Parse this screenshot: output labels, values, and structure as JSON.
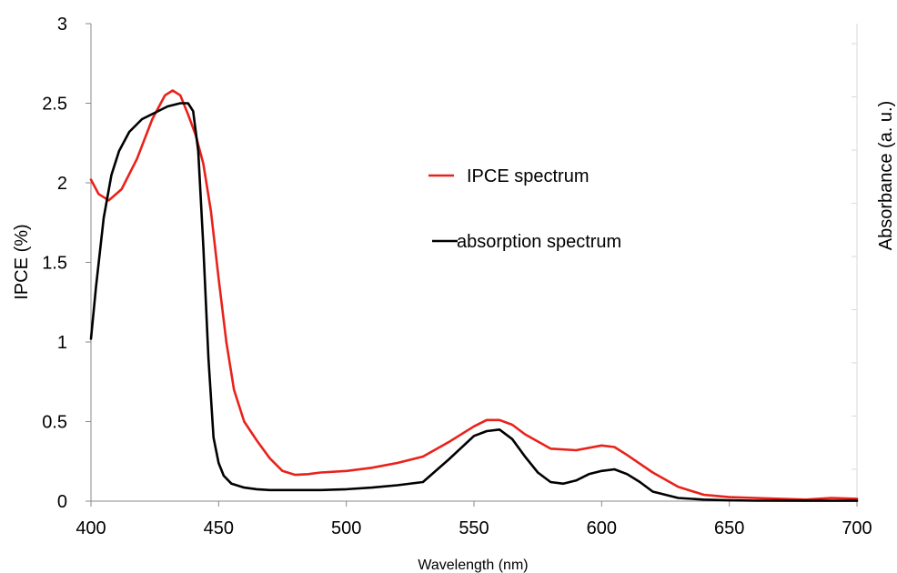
{
  "chart_data": {
    "type": "line",
    "xlabel": "Wavelength (nm)",
    "ylabel": "IPCE (%)",
    "y2label": "Absorbance (a. u.)",
    "xlim": [
      400,
      700
    ],
    "ylim": [
      0,
      3
    ],
    "x_ticks": [
      400,
      450,
      500,
      550,
      600,
      650,
      700
    ],
    "y_ticks": [
      0,
      0.5,
      1,
      1.5,
      2,
      2.5,
      3
    ],
    "y_tick_labels": [
      "0",
      "0.5",
      "1",
      "1.5",
      "2",
      "2.5",
      "3"
    ],
    "grid": false,
    "legend": "center-right",
    "series": [
      {
        "name": "IPCE spectrum",
        "color": "#e8221a",
        "x": [
          400,
          403,
          407,
          412,
          418,
          424,
          429,
          432,
          435,
          438,
          441,
          444,
          447,
          450,
          453,
          456,
          460,
          465,
          470,
          475,
          480,
          485,
          490,
          500,
          510,
          520,
          530,
          540,
          550,
          555,
          560,
          565,
          570,
          580,
          590,
          600,
          605,
          610,
          620,
          630,
          640,
          650,
          660,
          670,
          680,
          690,
          700
        ],
        "y": [
          2.02,
          1.93,
          1.89,
          1.96,
          2.15,
          2.4,
          2.55,
          2.58,
          2.55,
          2.43,
          2.3,
          2.12,
          1.82,
          1.4,
          1.0,
          0.7,
          0.5,
          0.38,
          0.27,
          0.19,
          0.165,
          0.17,
          0.18,
          0.19,
          0.21,
          0.24,
          0.28,
          0.37,
          0.47,
          0.51,
          0.51,
          0.48,
          0.42,
          0.33,
          0.32,
          0.35,
          0.34,
          0.29,
          0.18,
          0.09,
          0.04,
          0.025,
          0.02,
          0.015,
          0.01,
          0.02,
          0.015
        ]
      },
      {
        "name": "absorption spectrum",
        "color": "#000000",
        "x": [
          400,
          402,
          405,
          408,
          411,
          415,
          420,
          425,
          430,
          435,
          438,
          440,
          442,
          444,
          446,
          448,
          450,
          452,
          455,
          460,
          465,
          470,
          475,
          480,
          490,
          500,
          510,
          520,
          530,
          540,
          550,
          555,
          560,
          565,
          570,
          575,
          580,
          585,
          590,
          595,
          600,
          605,
          610,
          615,
          620,
          630,
          640,
          650,
          660,
          680,
          700
        ],
        "y": [
          1.02,
          1.35,
          1.78,
          2.05,
          2.2,
          2.32,
          2.4,
          2.44,
          2.48,
          2.5,
          2.5,
          2.45,
          2.2,
          1.6,
          0.9,
          0.4,
          0.24,
          0.16,
          0.11,
          0.085,
          0.075,
          0.07,
          0.07,
          0.07,
          0.07,
          0.075,
          0.085,
          0.1,
          0.12,
          0.26,
          0.41,
          0.44,
          0.45,
          0.39,
          0.28,
          0.18,
          0.12,
          0.11,
          0.13,
          0.17,
          0.19,
          0.2,
          0.17,
          0.12,
          0.06,
          0.02,
          0.01,
          0.005,
          0.003,
          0.002,
          0.002
        ]
      }
    ]
  }
}
